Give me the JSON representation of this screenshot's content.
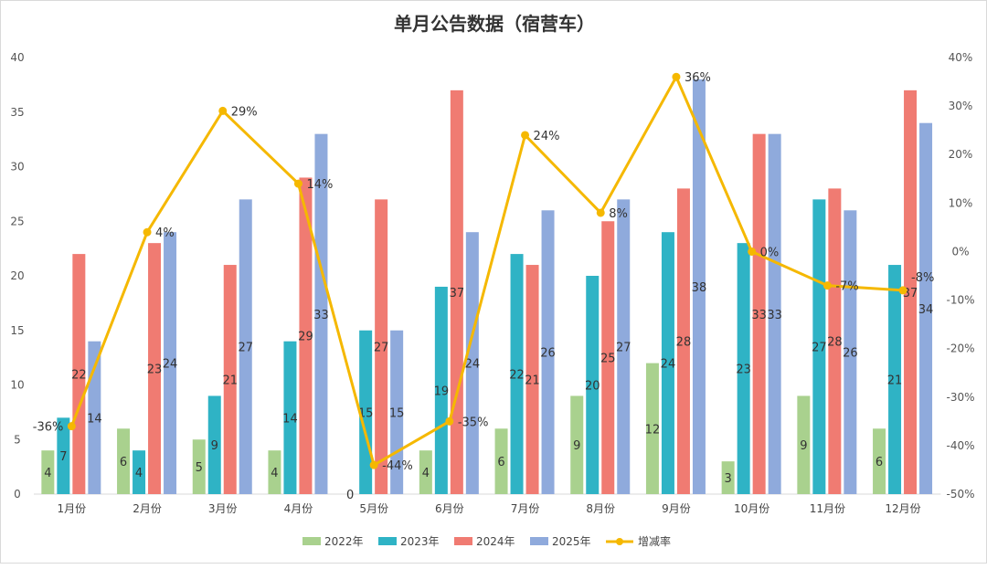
{
  "chart_data": {
    "type": "bar",
    "title": "单月公告数据（宿营车）",
    "categories": [
      "1月份",
      "2月份",
      "3月份",
      "4月份",
      "5月份",
      "6月份",
      "7月份",
      "8月份",
      "9月份",
      "10月份",
      "11月份",
      "12月份"
    ],
    "series": [
      {
        "name": "2022年",
        "color": "#a9d18e",
        "values": [
          4,
          6,
          5,
          4,
          0,
          4,
          6,
          9,
          12,
          3,
          9,
          6
        ]
      },
      {
        "name": "2023年",
        "color": "#2fb3c5",
        "values": [
          7,
          4,
          9,
          14,
          15,
          19,
          22,
          20,
          24,
          23,
          27,
          21
        ]
      },
      {
        "name": "2024年",
        "color": "#f07b72",
        "values": [
          22,
          23,
          21,
          29,
          27,
          37,
          21,
          25,
          28,
          33,
          28,
          37
        ]
      },
      {
        "name": "2025年",
        "color": "#8faadc",
        "values": [
          14,
          24,
          27,
          33,
          15,
          24,
          26,
          27,
          38,
          33,
          26,
          34
        ]
      }
    ],
    "line_series": {
      "name": "增减率",
      "color": "#f5b800",
      "values": [
        -36,
        4,
        29,
        14,
        -44,
        -35,
        24,
        8,
        36,
        0,
        -7,
        -8
      ],
      "labels": [
        "-36%",
        "4%",
        "29%",
        "14%",
        "-44%",
        "-35%",
        "24%",
        "8%",
        "36%",
        "0%",
        "-7%",
        "-8%"
      ]
    },
    "ylim": [
      0,
      40
    ],
    "yticks": [
      "0",
      "5",
      "10",
      "15",
      "20",
      "25",
      "30",
      "35",
      "40"
    ],
    "y2lim": [
      -50,
      40
    ],
    "y2ticks": [
      "-50%",
      "-40%",
      "-30%",
      "-20%",
      "-10%",
      "0%",
      "10%",
      "20%",
      "30%",
      "40%"
    ],
    "legend": "bottom",
    "grid": false
  }
}
